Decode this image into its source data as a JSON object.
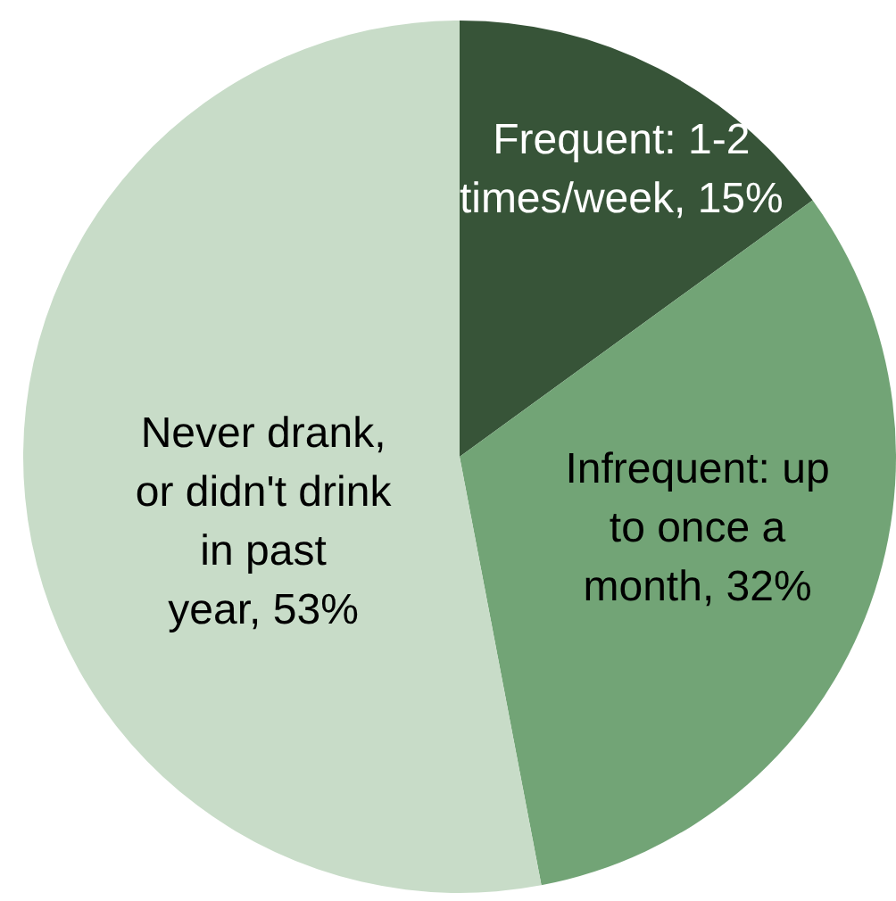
{
  "chart_data": {
    "type": "pie",
    "categories": [
      "Frequent: 1-2 times/week",
      "Infrequent: up to once a month",
      "Never drank, or didn't drink in past year"
    ],
    "values": [
      15,
      32,
      53
    ],
    "colors": [
      "#375438",
      "#72a476",
      "#c8dcc8"
    ],
    "value_labels": [
      "15%",
      "32%",
      "53%"
    ]
  }
}
